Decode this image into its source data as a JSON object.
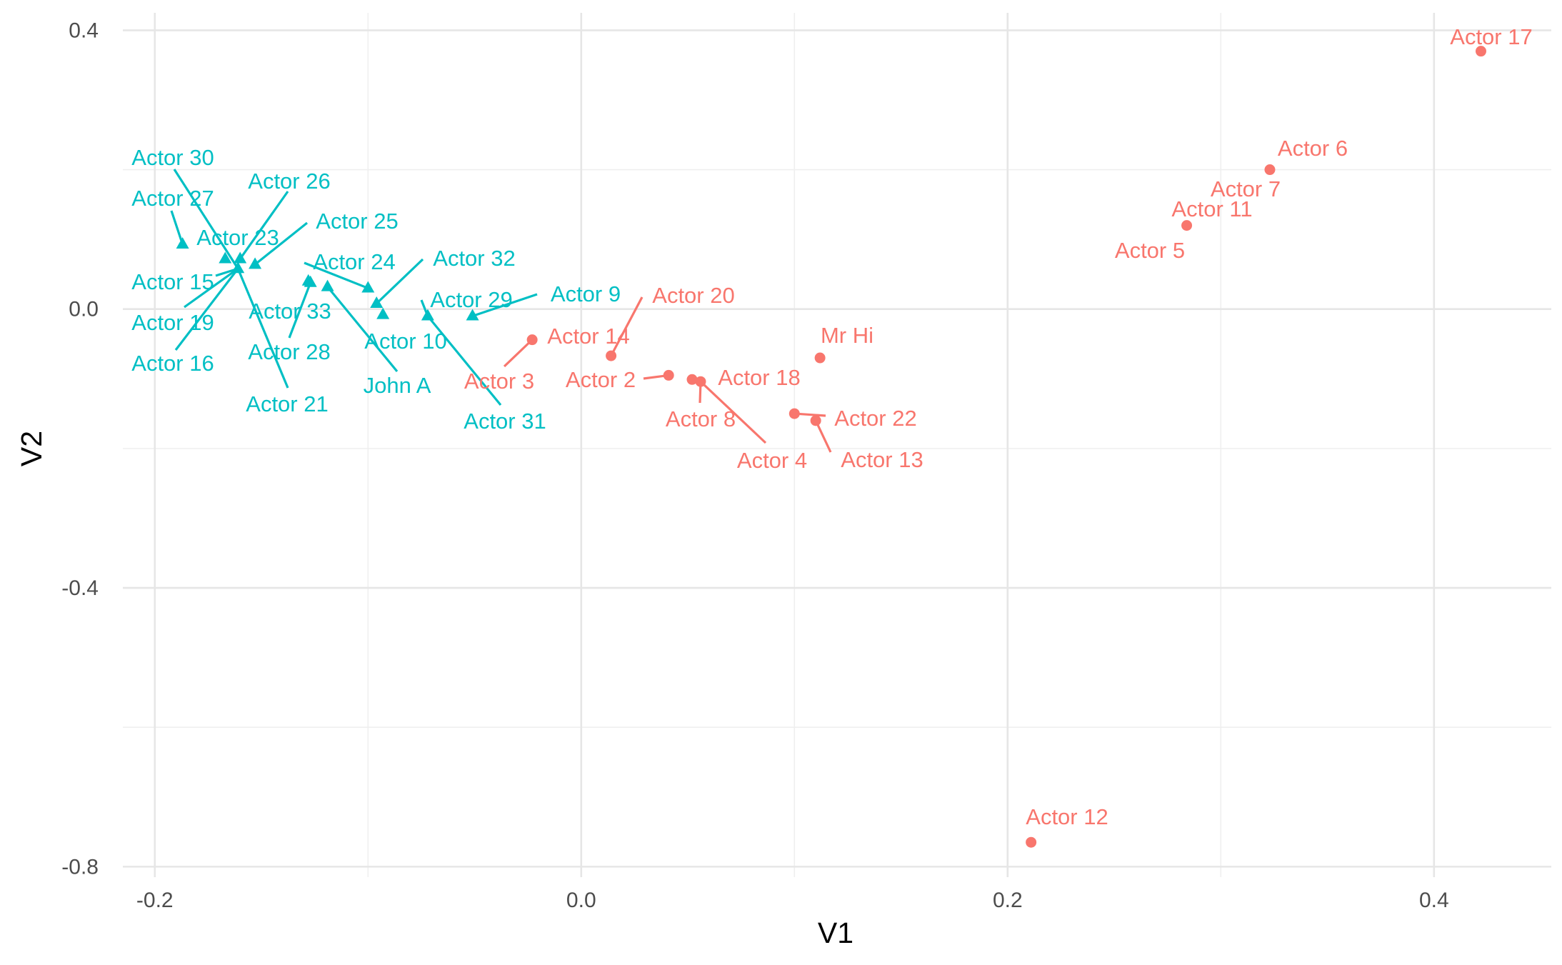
{
  "chart_data": {
    "type": "scatter",
    "xlabel": "V1",
    "ylabel": "V2",
    "xlim": [
      -0.215,
      0.455
    ],
    "ylim": [
      -0.815,
      0.425
    ],
    "x_ticks": [
      -0.2,
      0.0,
      0.2,
      0.4
    ],
    "x_tick_labels": [
      "-0.2",
      "0.0",
      "0.2",
      "0.4"
    ],
    "y_ticks": [
      0.4,
      0.0,
      -0.4,
      -0.8
    ],
    "y_tick_labels": [
      "0.4",
      "0.0",
      "-0.4",
      "-0.8"
    ],
    "grid": true,
    "legend": "none",
    "series": [
      {
        "color": "#F8766D",
        "marker": "circle",
        "points": [
          {
            "label": "Actor 17",
            "x": 0.422,
            "y": 0.37
          },
          {
            "label": "Actor 6",
            "x": 0.323,
            "y": 0.2
          },
          {
            "label": "Actor 7",
            "x": 0.323,
            "y": 0.2
          },
          {
            "label": "Actor 11",
            "x": 0.284,
            "y": 0.12
          },
          {
            "label": "Actor 5",
            "x": 0.284,
            "y": 0.12
          },
          {
            "label": "Mr Hi",
            "x": 0.112,
            "y": -0.07
          },
          {
            "label": "Actor 14",
            "x": -0.023,
            "y": -0.044
          },
          {
            "label": "Actor 3",
            "x": -0.023,
            "y": -0.044
          },
          {
            "label": "Actor 20",
            "x": 0.014,
            "y": -0.067
          },
          {
            "label": "Actor 2",
            "x": 0.041,
            "y": -0.095
          },
          {
            "label": "Actor 18",
            "x": 0.052,
            "y": -0.101
          },
          {
            "label": "Actor 8",
            "x": 0.056,
            "y": -0.104
          },
          {
            "label": "Actor 4",
            "x": 0.056,
            "y": -0.104
          },
          {
            "label": "Actor 22",
            "x": 0.1,
            "y": -0.15
          },
          {
            "label": "Actor 13",
            "x": 0.11,
            "y": -0.16
          },
          {
            "label": "Actor 12",
            "x": 0.211,
            "y": -0.765
          }
        ]
      },
      {
        "color": "#00BFC4",
        "marker": "triangle",
        "points": [
          {
            "label": "Actor 30",
            "x": -0.161,
            "y": 0.058
          },
          {
            "label": "Actor 27",
            "x": -0.187,
            "y": 0.093
          },
          {
            "label": "Actor 23",
            "x": -0.167,
            "y": 0.072
          },
          {
            "label": "Actor 26",
            "x": -0.16,
            "y": 0.072
          },
          {
            "label": "Actor 25",
            "x": -0.153,
            "y": 0.064
          },
          {
            "label": "Actor 15",
            "x": -0.161,
            "y": 0.058
          },
          {
            "label": "Actor 19",
            "x": -0.161,
            "y": 0.058
          },
          {
            "label": "Actor 16",
            "x": -0.161,
            "y": 0.058
          },
          {
            "label": "Actor 21",
            "x": -0.161,
            "y": 0.058
          },
          {
            "label": "Actor 33",
            "x": -0.128,
            "y": 0.04
          },
          {
            "label": "Actor 28",
            "x": -0.127,
            "y": 0.038
          },
          {
            "label": "John A",
            "x": -0.119,
            "y": 0.032
          },
          {
            "label": "Actor 24",
            "x": -0.1,
            "y": 0.03
          },
          {
            "label": "Actor 32",
            "x": -0.096,
            "y": 0.008
          },
          {
            "label": "Actor 10",
            "x": -0.093,
            "y": -0.008
          },
          {
            "label": "Actor 29",
            "x": -0.072,
            "y": -0.01
          },
          {
            "label": "Actor 31",
            "x": -0.072,
            "y": -0.01
          },
          {
            "label": "Actor 9",
            "x": -0.051,
            "y": -0.01
          }
        ]
      }
    ]
  }
}
